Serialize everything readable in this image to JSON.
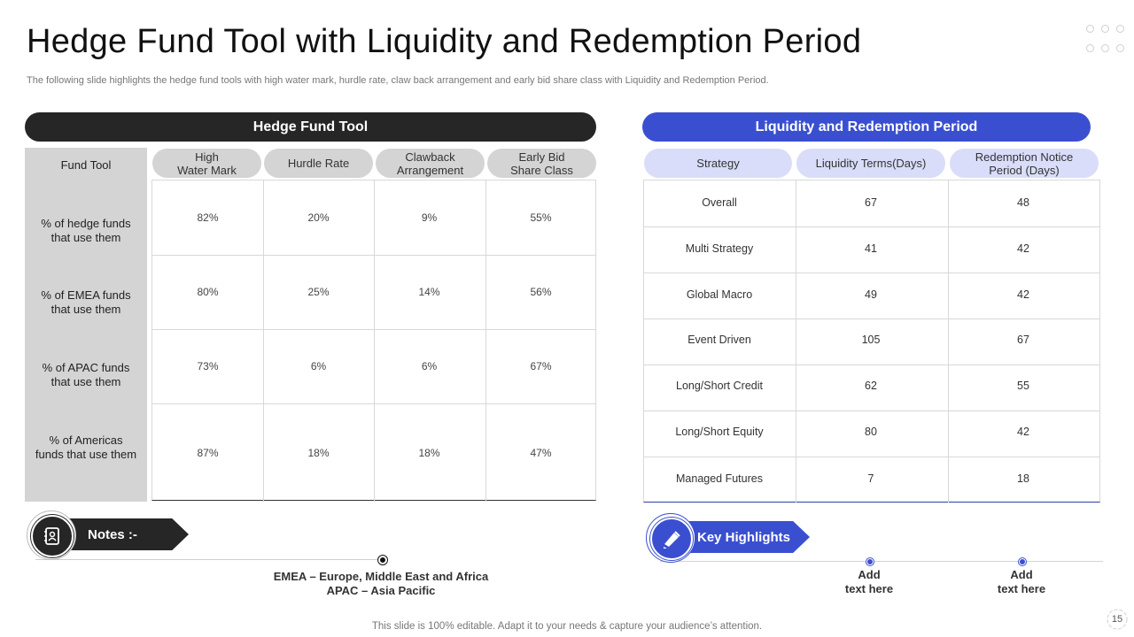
{
  "title": "Hedge Fund Tool with Liquidity and Redemption Period",
  "subtitle": "The following slide highlights the hedge fund tools with high water mark, hurdle rate, claw back arrangement and early bid share class with Liquidity and Redemption Period.",
  "hedge_table": {
    "header": "Hedge Fund Tool",
    "corner": "Fund Tool",
    "columns": [
      "High\nWater Mark",
      "Hurdle Rate",
      "Clawback\nArrangement",
      "Early Bid\nShare Class"
    ],
    "rows": [
      {
        "label": "% of hedge funds\nthat use them",
        "values": [
          "82%",
          "20%",
          "9%",
          "55%"
        ]
      },
      {
        "label": "% of EMEA funds\nthat use them",
        "values": [
          "80%",
          "25%",
          "14%",
          "56%"
        ]
      },
      {
        "label": "% of APAC funds\nthat use them",
        "values": [
          "73%",
          "6%",
          "6%",
          "67%"
        ]
      },
      {
        "label": "% of Americas\nfunds that use them",
        "values": [
          "87%",
          "18%",
          "18%",
          "47%"
        ]
      }
    ]
  },
  "liquidity_table": {
    "header": "Liquidity and Redemption Period",
    "columns": [
      "Strategy",
      "Liquidity Terms(Days)",
      "Redemption Notice\nPeriod (Days)"
    ],
    "rows": [
      [
        "Overall",
        "67",
        "48"
      ],
      [
        "Multi Strategy",
        "41",
        "42"
      ],
      [
        "Global Macro",
        "49",
        "42"
      ],
      [
        "Event Driven",
        "105",
        "67"
      ],
      [
        "Long/Short Credit",
        "62",
        "55"
      ],
      [
        "Long/Short Equity",
        "80",
        "42"
      ],
      [
        "Managed Futures",
        "7",
        "18"
      ]
    ]
  },
  "notes": {
    "label": "Notes :-",
    "line1": "EMEA – Europe, Middle East and Africa",
    "line2": "APAC – Asia Pacific"
  },
  "key_highlights": {
    "label": "Key Highlights",
    "items": [
      "Add\ntext here",
      "Add\ntext here"
    ]
  },
  "footer": "This slide is 100% editable. Adapt it to your needs & capture your audience’s attention.",
  "page_number": "15",
  "colors": {
    "dark": "#262626",
    "accent": "#3a4fd0",
    "light_blue": "#d9ddfa",
    "grey": "#d4d4d4"
  }
}
